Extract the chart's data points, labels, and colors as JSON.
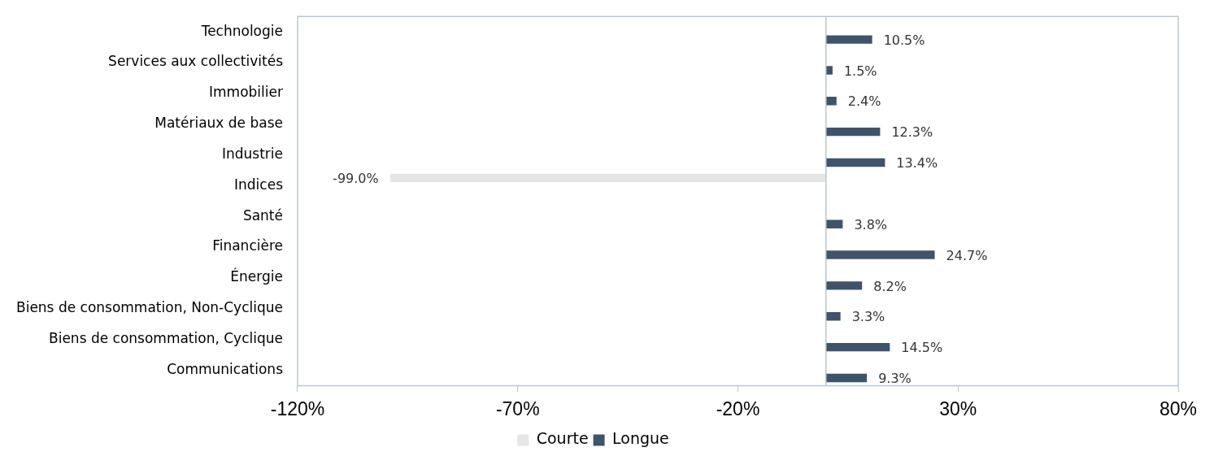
{
  "chart_data": {
    "type": "bar",
    "orientation": "horizontal",
    "categories": [
      "Technologie",
      "Services aux collectivités",
      "Immobilier",
      "Matériaux de base",
      "Industrie",
      "Indices",
      "Santé",
      "Financière",
      "Énergie",
      "Biens de consommation, Non-Cyclique",
      "Biens de consommation, Cyclique",
      "Communications"
    ],
    "series": [
      {
        "name": "Courte",
        "color": "#e6e6e6",
        "values": [
          null,
          null,
          null,
          null,
          null,
          -99.0,
          null,
          null,
          null,
          null,
          null,
          null
        ],
        "value_labels": [
          null,
          null,
          null,
          null,
          null,
          "-99.0%",
          null,
          null,
          null,
          null,
          null,
          null
        ]
      },
      {
        "name": "Longue",
        "color": "#3f546b",
        "values": [
          10.5,
          1.5,
          2.4,
          12.3,
          13.4,
          null,
          3.8,
          24.7,
          8.2,
          3.3,
          14.5,
          9.3
        ],
        "value_labels": [
          "10.5%",
          "1.5%",
          "2.4%",
          "12.3%",
          "13.4%",
          null,
          "3.8%",
          "24.7%",
          "8.2%",
          "3.3%",
          "14.5%",
          "9.3%"
        ]
      }
    ],
    "xlim": [
      -120,
      80
    ],
    "xticks": [
      {
        "value": -120,
        "label": "-120%"
      },
      {
        "value": -70,
        "label": "-70%"
      },
      {
        "value": -20,
        "label": "-20%"
      },
      {
        "value": 30,
        "label": "30%"
      },
      {
        "value": 80,
        "label": "80%"
      }
    ],
    "legend": "bottom",
    "grid": false
  }
}
